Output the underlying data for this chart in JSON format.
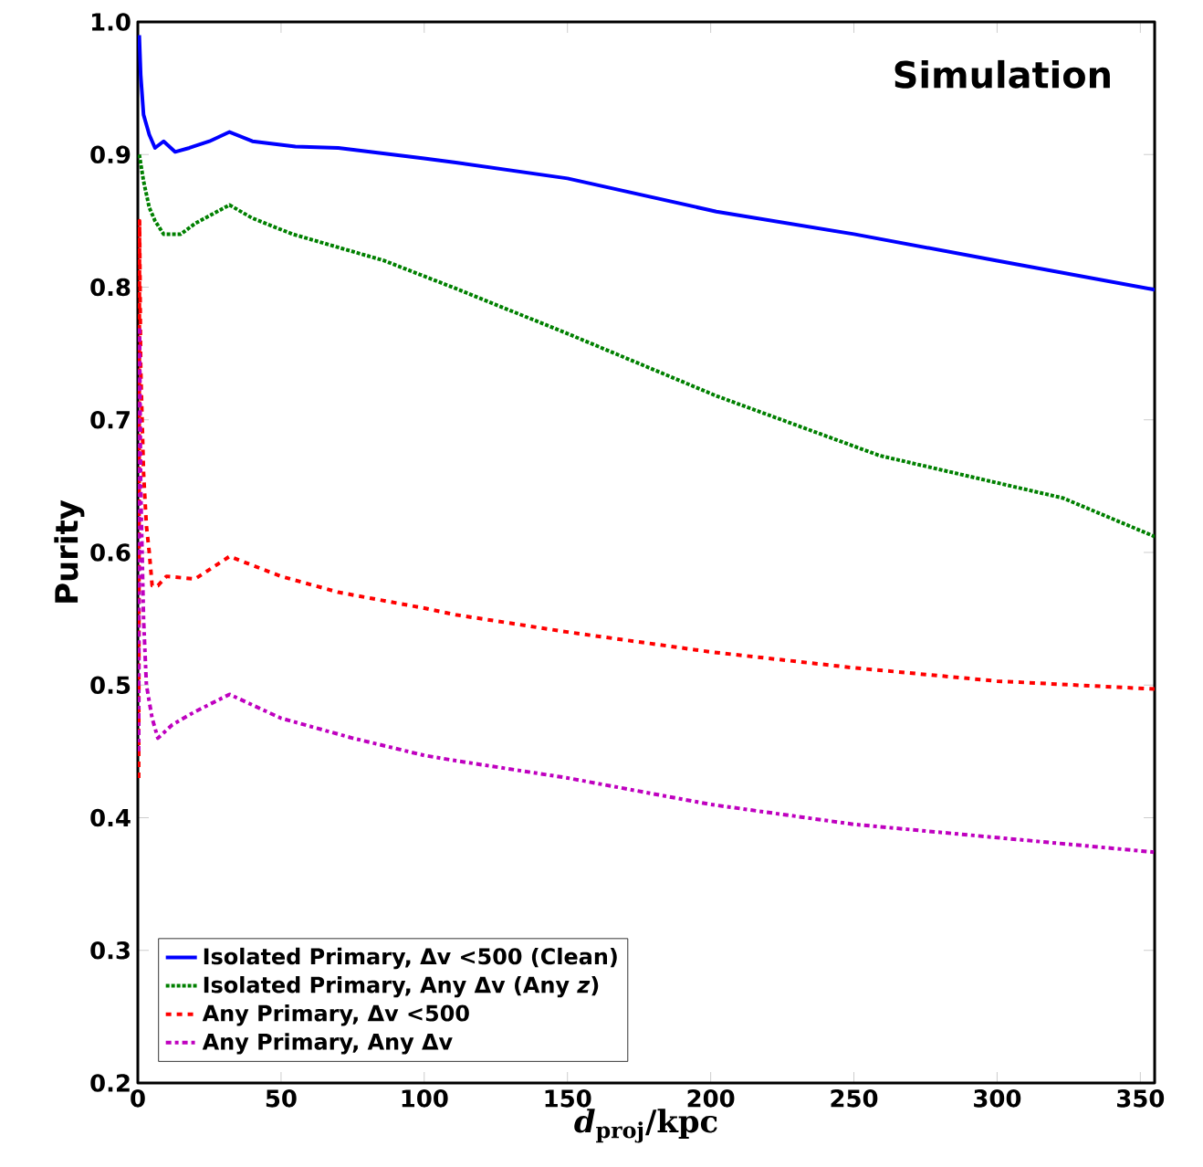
{
  "chart_data": {
    "type": "line",
    "xlabel": "*d*$_{proj}$/kpc",
    "ylabel": "Purity",
    "annotations": [
      "Simulation"
    ],
    "xlim": [
      0,
      355
    ],
    "ylim": [
      0.2,
      1.0
    ],
    "xticks": [
      0,
      50,
      100,
      150,
      200,
      250,
      300,
      350
    ],
    "yticks": [
      0.2,
      0.3,
      0.4,
      0.5,
      0.6,
      0.7,
      0.8,
      0.9,
      {
        "value": 1.0,
        "label": "1.0"
      }
    ],
    "legend": "bottom left",
    "grid": false,
    "marker": "none",
    "series": [
      {
        "name": "Isolated Primary, Δv <500 (Clean)",
        "color": "#0000ff",
        "line_style": "solid",
        "x": [
          0.5,
          1,
          2,
          4,
          6,
          9,
          13,
          18,
          25,
          32,
          40,
          55,
          70,
          100,
          111,
          150,
          202,
          250,
          300,
          355
        ],
        "values": [
          0.99,
          0.96,
          0.93,
          0.915,
          0.905,
          0.91,
          0.902,
          0.905,
          0.91,
          0.917,
          0.91,
          0.906,
          0.905,
          0.897,
          0.894,
          0.882,
          0.857,
          0.84,
          0.82,
          0.798
        ]
      },
      {
        "name": "Isolated Primary, Any Δv (Any *z*)",
        "color": "#008000",
        "line_style": "dotted",
        "x": [
          0.5,
          2,
          4,
          6,
          9,
          15,
          20,
          32,
          40,
          54,
          86,
          111,
          150,
          202,
          259,
          323,
          355
        ],
        "values": [
          0.9,
          0.88,
          0.86,
          0.85,
          0.84,
          0.84,
          0.848,
          0.862,
          0.852,
          0.84,
          0.82,
          0.799,
          0.765,
          0.718,
          0.673,
          0.641,
          0.612
        ]
      },
      {
        "name": "Any Primary, Δv <500",
        "color": "#ff0000",
        "line_style": "dashed",
        "x": [
          0.3,
          0.6,
          1,
          2,
          3,
          4,
          5,
          7,
          10,
          20,
          32,
          50,
          70,
          100,
          111,
          150,
          200,
          250,
          300,
          355
        ],
        "values": [
          0.43,
          0.85,
          0.74,
          0.66,
          0.62,
          0.6,
          0.575,
          0.575,
          0.582,
          0.58,
          0.597,
          0.582,
          0.57,
          0.558,
          0.553,
          0.54,
          0.525,
          0.513,
          0.503,
          0.497
        ]
      },
      {
        "name": "Any Primary, Any Δv",
        "color": "#bf00bf",
        "line_style": "dashdot",
        "x": [
          0.3,
          0.6,
          1,
          2,
          3,
          5,
          7,
          12,
          20,
          32,
          50,
          75,
          100,
          111,
          150,
          200,
          250,
          300,
          355
        ],
        "values": [
          0.45,
          0.77,
          0.65,
          0.55,
          0.5,
          0.475,
          0.46,
          0.47,
          0.48,
          0.493,
          0.475,
          0.46,
          0.447,
          0.443,
          0.43,
          0.41,
          0.395,
          0.385,
          0.374
        ]
      }
    ]
  }
}
